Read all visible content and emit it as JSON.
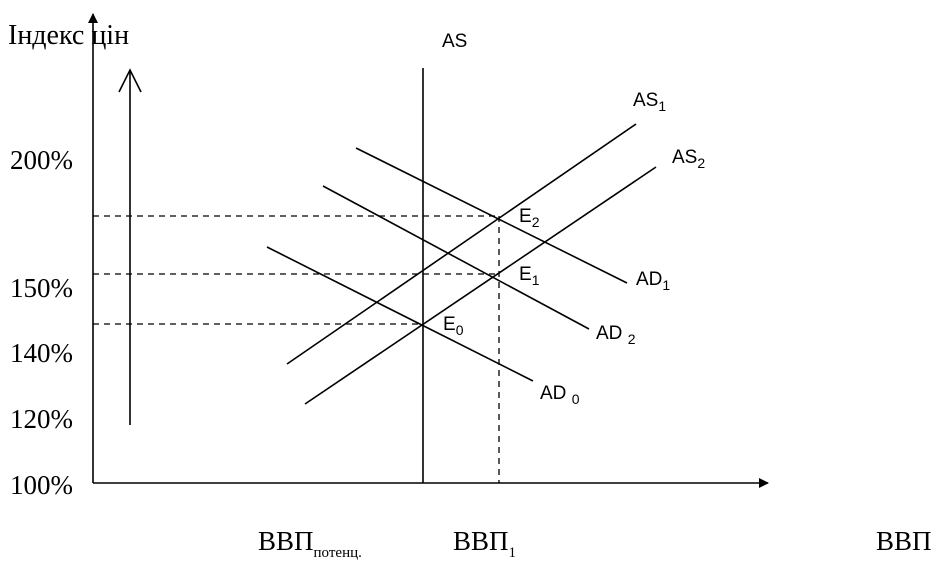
{
  "y_axis": {
    "title": "Індекс цін",
    "ticks": [
      "200%",
      "150%",
      "140%",
      "120%",
      "100%"
    ]
  },
  "x_axis": {
    "labels": [
      {
        "main": "ВВП",
        "sub": "потенц."
      },
      {
        "main": "ВВП",
        "sub": "1"
      },
      {
        "main": "ВВП",
        "sub": ""
      }
    ]
  },
  "curves": {
    "AS": {
      "main": "AS",
      "sub": ""
    },
    "AS1": {
      "main": "AS",
      "sub": "1"
    },
    "AS2": {
      "main": "AS",
      "sub": "2"
    },
    "AD1": {
      "main": "AD",
      "sub": "1"
    },
    "AD2": {
      "main": "AD ",
      "sub": "2"
    },
    "AD0": {
      "main": "AD ",
      "sub": "0"
    }
  },
  "points": {
    "E0": {
      "main": "E",
      "sub": "0"
    },
    "E1": {
      "main": "E",
      "sub": "1"
    },
    "E2": {
      "main": "E",
      "sub": "2"
    }
  }
}
